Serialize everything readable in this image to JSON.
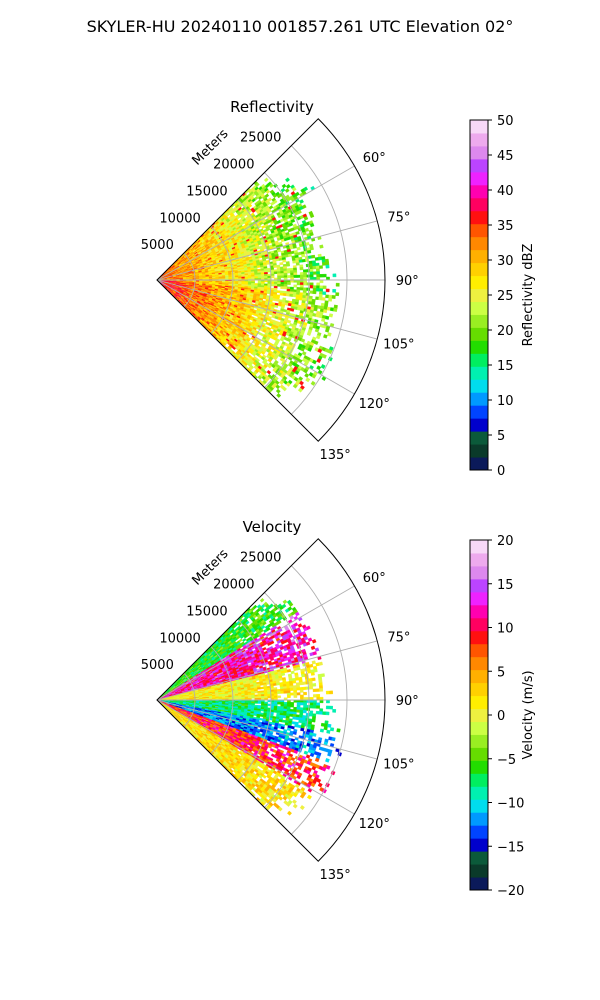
{
  "figure_title": "SKYLER-HU  20240110  001857.261 UTC Elevation 02°",
  "chart_data": [
    {
      "type": "heatmap",
      "title": "Reflectivity",
      "radial_axis_label": "Meters",
      "radial_ticks": [
        5000,
        10000,
        15000,
        20000,
        25000
      ],
      "radial_tick_labels": [
        "5000",
        "10000",
        "15000",
        "20000",
        "25000"
      ],
      "range_max_m": 30000,
      "azimuth_range_deg": [
        45,
        135
      ],
      "azimuth_ticks": [
        60,
        75,
        90,
        105,
        120,
        135
      ],
      "azimuth_tick_labels": [
        "60°",
        "75°",
        "90°",
        "105°",
        "120°",
        "135°"
      ],
      "grid": true,
      "colorbar": {
        "label": "Reflectivity dBZ",
        "min": 0,
        "max": 50,
        "ticks": [
          0,
          5,
          10,
          15,
          20,
          25,
          30,
          35,
          40,
          45,
          50
        ],
        "tick_labels": [
          "0",
          "5",
          "10",
          "15",
          "20",
          "25",
          "30",
          "35",
          "40",
          "45",
          "50"
        ],
        "colormap": [
          "#0b1a5a",
          "#0a3a2a",
          "#0b5a3a",
          "#0000cc",
          "#0044ff",
          "#0099ff",
          "#00ddee",
          "#00f0b0",
          "#00ee60",
          "#22dd00",
          "#66dd00",
          "#99ee22",
          "#ccff44",
          "#eef040",
          "#ffee00",
          "#ffd000",
          "#ffb000",
          "#ff8800",
          "#ff5500",
          "#ff1010",
          "#ff0060",
          "#ff00b0",
          "#ee22ff",
          "#bb44ff",
          "#dd88ee",
          "#eeaaee",
          "#f8d8f8"
        ]
      }
    },
    {
      "type": "heatmap",
      "title": "Velocity",
      "radial_axis_label": "Meters",
      "radial_ticks": [
        5000,
        10000,
        15000,
        20000,
        25000
      ],
      "radial_tick_labels": [
        "5000",
        "10000",
        "15000",
        "20000",
        "25000"
      ],
      "range_max_m": 30000,
      "azimuth_range_deg": [
        45,
        135
      ],
      "azimuth_ticks": [
        60,
        75,
        90,
        105,
        120,
        135
      ],
      "azimuth_tick_labels": [
        "60°",
        "75°",
        "90°",
        "105°",
        "120°",
        "135°"
      ],
      "grid": true,
      "colorbar": {
        "label": "Velocity (m/s)",
        "min": -20,
        "max": 20,
        "ticks": [
          -20,
          -15,
          -10,
          -5,
          0,
          5,
          10,
          15,
          20
        ],
        "tick_labels": [
          "−20",
          "−15",
          "−10",
          "−5",
          "0",
          "5",
          "10",
          "15",
          "20"
        ],
        "colormap": [
          "#0b1a5a",
          "#0a3a2a",
          "#0b5a3a",
          "#0000cc",
          "#0044ff",
          "#0099ff",
          "#00ddee",
          "#00f0b0",
          "#00ee60",
          "#22dd00",
          "#66dd00",
          "#99ee22",
          "#ccff44",
          "#eef040",
          "#ffee00",
          "#ffd000",
          "#ffb000",
          "#ff8800",
          "#ff5500",
          "#ff1010",
          "#ff0060",
          "#ff00b0",
          "#ee22ff",
          "#bb44ff",
          "#dd88ee",
          "#eeaaee",
          "#f8d8f8"
        ]
      }
    }
  ]
}
